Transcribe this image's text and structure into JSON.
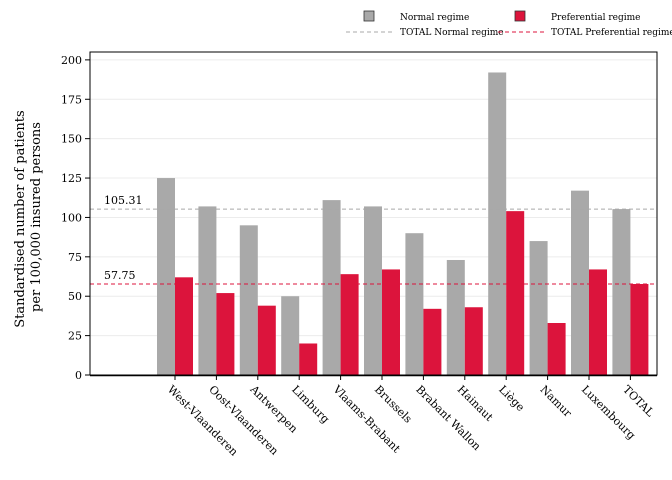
{
  "chart_data": {
    "type": "bar",
    "title": "",
    "xlabel": "",
    "ylabel_lines": [
      "Standardised number of patients",
      "per 100,000 insured persons"
    ],
    "ylim": [
      0,
      205
    ],
    "yticks": [
      0,
      25,
      50,
      75,
      100,
      125,
      150,
      175,
      200
    ],
    "grid": true,
    "legend_position": "top-right",
    "categories": [
      "West-Vlaanderen",
      "Oost-Vlaanderen",
      "Antwerpen",
      "Limburg",
      "Vlaams-Brabant",
      "Brussels",
      "Brabant Wallon",
      "Hainaut",
      "Liège",
      "Namur",
      "Luxembourg",
      "TOTAL"
    ],
    "series": [
      {
        "name": "Normal regime",
        "color": "#a9a9a9",
        "values": [
          125,
          107,
          95,
          50,
          111,
          107,
          90,
          73,
          192,
          85,
          117,
          105.31
        ]
      },
      {
        "name": "Preferential regime",
        "color": "#dc143c",
        "values": [
          62,
          52,
          44,
          20,
          64,
          67,
          42,
          43,
          104,
          33,
          67,
          57.75
        ]
      }
    ],
    "reference_lines": [
      {
        "name": "TOTAL Normal regime",
        "value": 105.31,
        "label": "105.31",
        "color": "#a9a9a9"
      },
      {
        "name": "TOTAL Preferential regime",
        "value": 57.75,
        "label": "57.75",
        "color": "#dc143c"
      }
    ]
  }
}
